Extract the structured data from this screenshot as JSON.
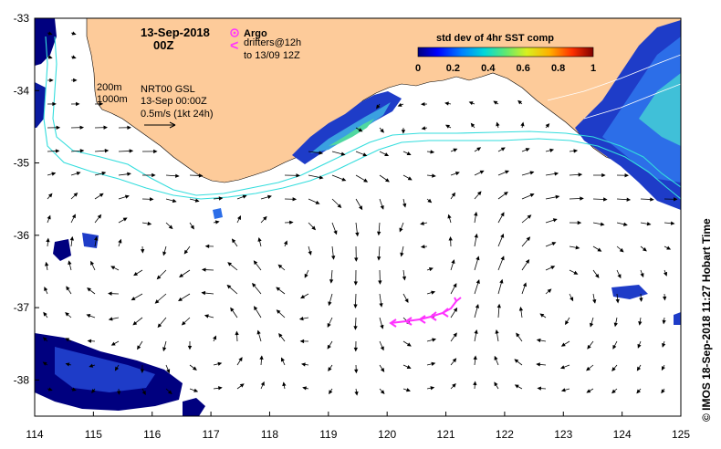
{
  "title": {
    "date": "13-Sep-2018",
    "time": "00Z"
  },
  "legend": {
    "argo_label": "Argo",
    "drifter_symbol": "<",
    "drifter_line1": "drifters@12h",
    "drifter_line2": "to 13/09 12Z",
    "argo_color": "#ff33ff",
    "drifter_color": "#ff33ff"
  },
  "colorbar": {
    "title": "std dev of 4hr SST comp",
    "ticks": [
      "0",
      "0.2",
      "0.4",
      "0.6",
      "0.8",
      "1"
    ],
    "colors": [
      "#00007f",
      "#0000ff",
      "#0080ff",
      "#00d0d0",
      "#40e080",
      "#c0f040",
      "#ffd000",
      "#ff6000",
      "#d00000",
      "#800000"
    ]
  },
  "isobaths": {
    "label_200m": "200m",
    "label_1000m": "1000m",
    "color": "#33dddd"
  },
  "product_info": {
    "line1": "NRT00 GSL",
    "line2": "13-Sep 00:00Z",
    "line3": "0.5m/s (1kt 24h)"
  },
  "axes": {
    "x_ticks": [
      "114",
      "115",
      "116",
      "117",
      "118",
      "119",
      "120",
      "121",
      "122",
      "123",
      "124",
      "125"
    ],
    "y_ticks": [
      "-33",
      "-34",
      "-35",
      "-36",
      "-37",
      "-38"
    ],
    "lon_range": [
      114,
      125
    ],
    "lat_range": [
      -38.5,
      -33
    ]
  },
  "credit": "© IMOS 18-Sep-2018 11:27 Hobart Time",
  "colors": {
    "land": "#fdcb9a",
    "ocean": "#ffffff",
    "arrow": "#000000"
  }
}
